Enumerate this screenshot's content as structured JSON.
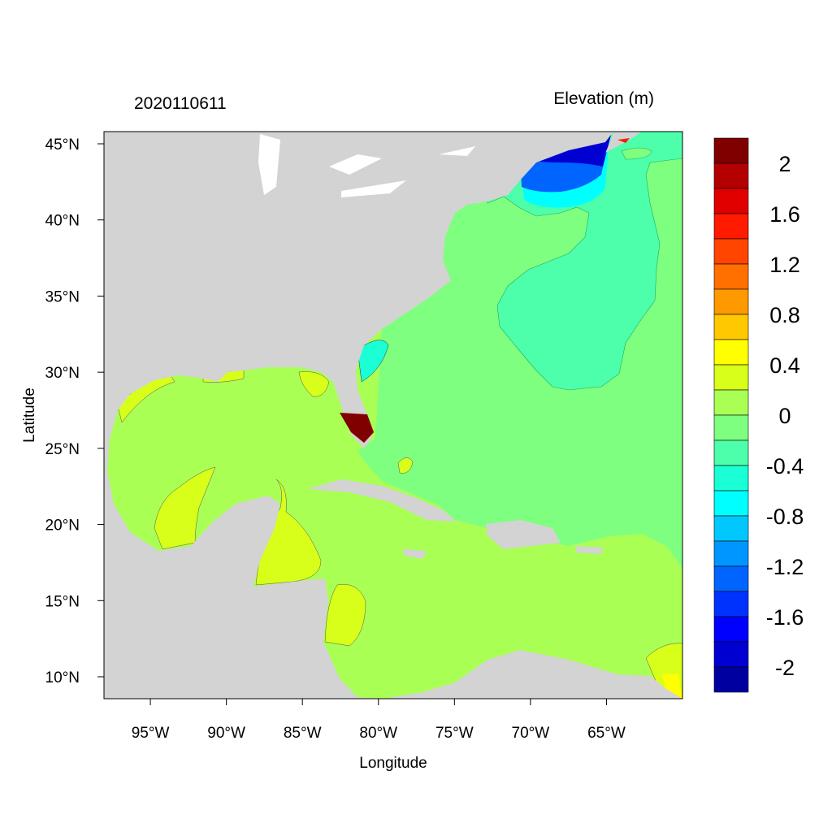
{
  "title_left": "2020110611",
  "title_right": "Elevation (m)",
  "x_axis": {
    "label": "Longitude",
    "range": [
      -98.05,
      -60.0
    ],
    "ticks": [
      {
        "value": -95,
        "label": "95°W"
      },
      {
        "value": -90,
        "label": "90°W"
      },
      {
        "value": -85,
        "label": "85°W"
      },
      {
        "value": -80,
        "label": "80°W"
      },
      {
        "value": -75,
        "label": "75°W"
      },
      {
        "value": -70,
        "label": "70°W"
      },
      {
        "value": -65,
        "label": "65°W"
      }
    ]
  },
  "y_axis": {
    "label": "Latitude",
    "range": [
      8.56,
      45.8
    ],
    "ticks": [
      {
        "value": 45,
        "label": "45°N"
      },
      {
        "value": 40,
        "label": "40°N"
      },
      {
        "value": 35,
        "label": "35°N"
      },
      {
        "value": 30,
        "label": "30°N"
      },
      {
        "value": 25,
        "label": "25°N"
      },
      {
        "value": 20,
        "label": "20°N"
      },
      {
        "value": 15,
        "label": "15°N"
      },
      {
        "value": 10,
        "label": "10°N"
      }
    ]
  },
  "land_color": "#d3d3d3",
  "colorbar": {
    "min": -2.2,
    "max": 2.2,
    "step": 0.2,
    "colors_top_to_bottom": [
      "#800000",
      "#b40000",
      "#e00000",
      "#ff1a00",
      "#ff4500",
      "#ff7000",
      "#ff9900",
      "#ffc800",
      "#ffff00",
      "#d8ff1a",
      "#aaff55",
      "#7fff7f",
      "#4dffaa",
      "#1affd5",
      "#00ffff",
      "#00c8ff",
      "#0096ff",
      "#0064ff",
      "#0032ff",
      "#0000ff",
      "#0000d2",
      "#0000a0"
    ],
    "labels": [
      {
        "value": 2,
        "label": "2"
      },
      {
        "value": 1.6,
        "label": "1.6"
      },
      {
        "value": 1.2,
        "label": "1.2"
      },
      {
        "value": 0.8,
        "label": "0.8"
      },
      {
        "value": 0.4,
        "label": "0.4"
      },
      {
        "value": 0,
        "label": "0"
      },
      {
        "value": -0.4,
        "label": "-0.4"
      },
      {
        "value": -0.8,
        "label": "-0.8"
      },
      {
        "value": -1.2,
        "label": "-1.2"
      },
      {
        "value": -1.6,
        "label": "-1.6"
      },
      {
        "value": -2,
        "label": "-2"
      }
    ]
  }
}
